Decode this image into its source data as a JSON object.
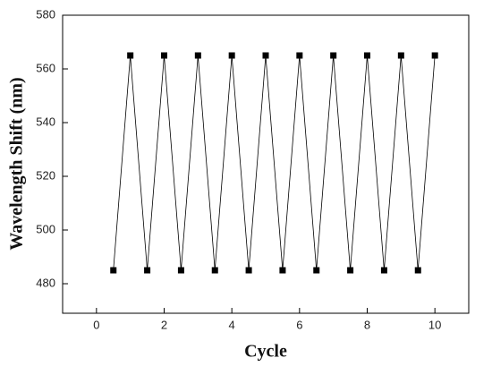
{
  "chart_data": {
    "type": "line",
    "x_label": "Cycle",
    "y_label": "Wavelength  Shift (nm)",
    "x": [
      0.5,
      1,
      1.5,
      2,
      2.5,
      3,
      3.5,
      4,
      4.5,
      5,
      5.5,
      6,
      6.5,
      7,
      7.5,
      8,
      8.5,
      9,
      9.5,
      10
    ],
    "series": [
      {
        "color": "#000000",
        "values": [
          485,
          565,
          485,
          565,
          485,
          565,
          485,
          565,
          485,
          565,
          485,
          565,
          485,
          565,
          485,
          565,
          485,
          565,
          485,
          565
        ]
      }
    ],
    "xlim": [
      -1,
      11
    ],
    "xticks": [
      0,
      2,
      4,
      6,
      8,
      10
    ],
    "ylim": [
      469,
      580
    ],
    "yticks": [
      480,
      500,
      520,
      540,
      560,
      580
    ],
    "grid": false
  }
}
